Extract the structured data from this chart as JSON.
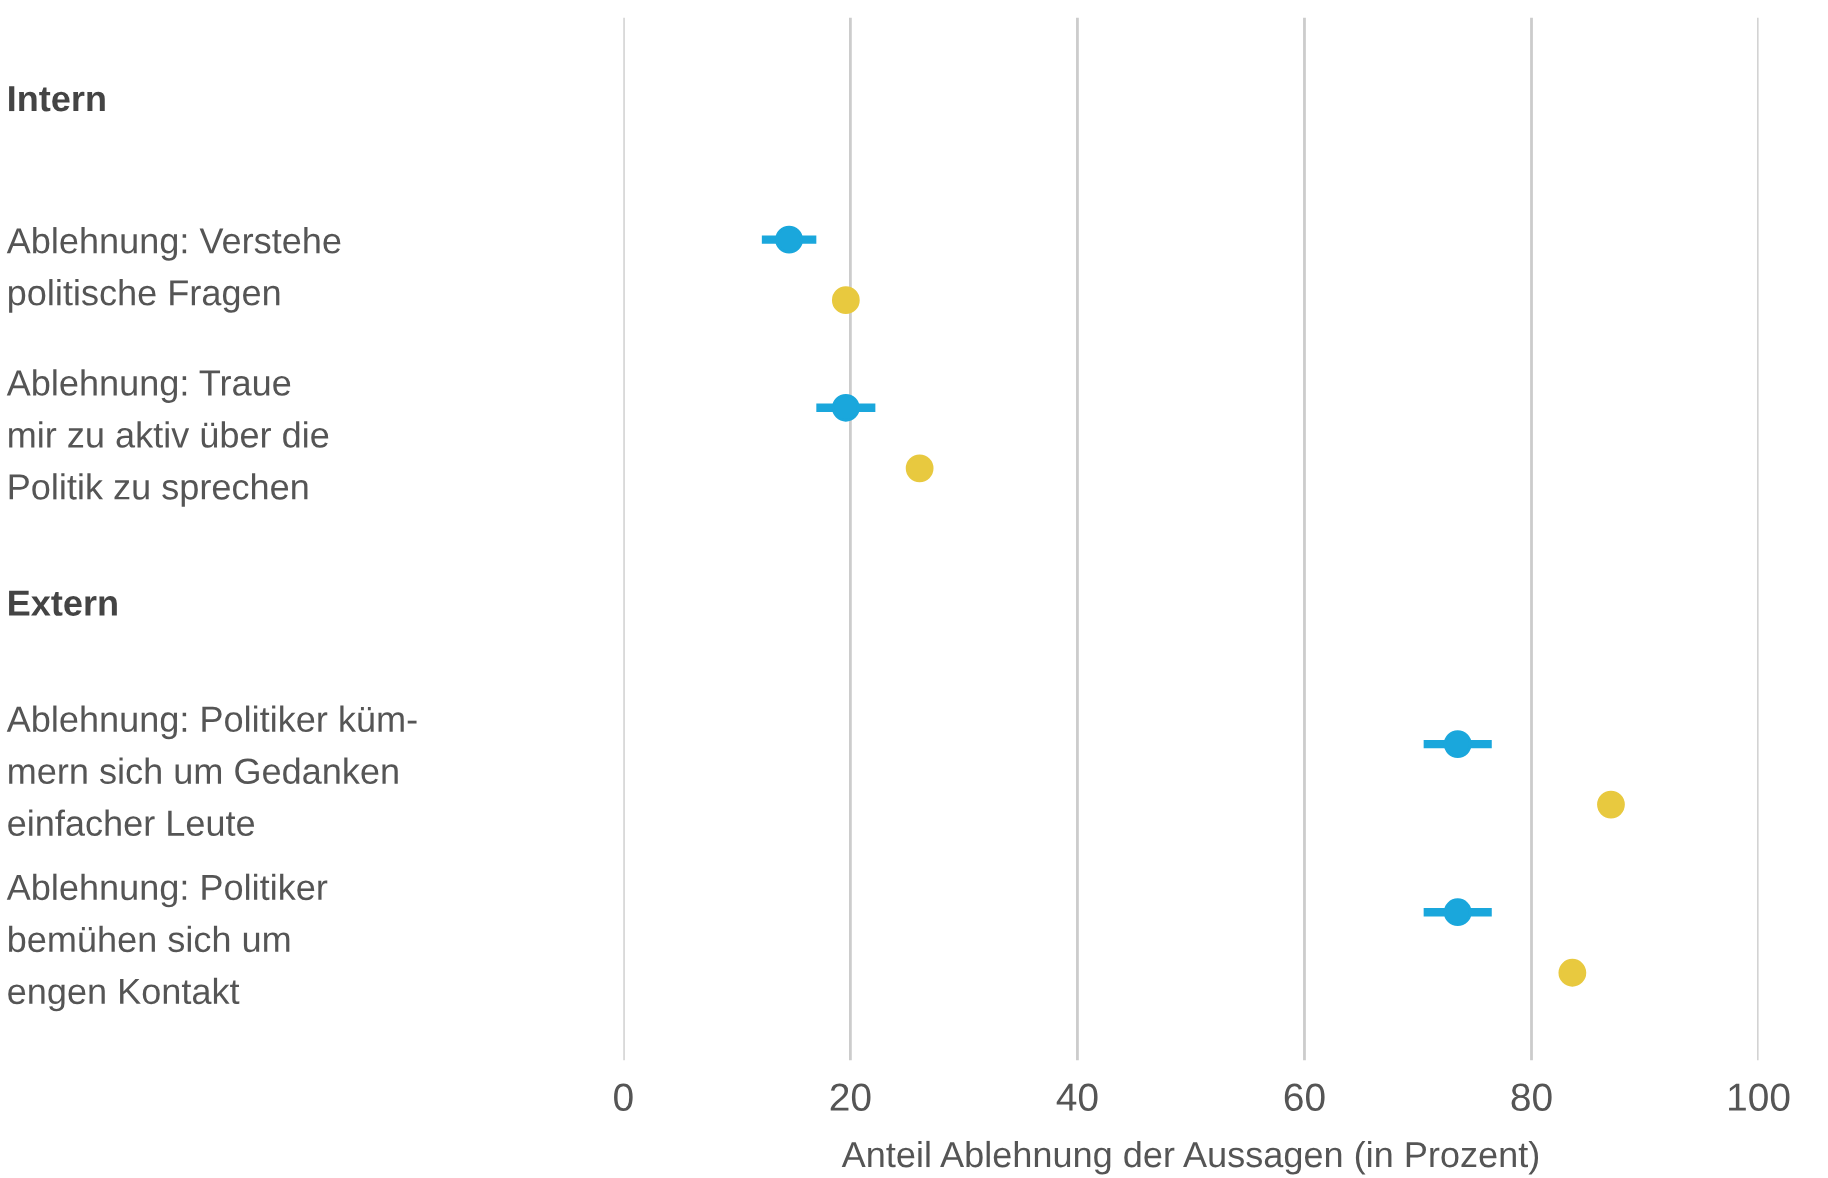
{
  "chart_data": {
    "type": "scatter",
    "orientation": "horizontal",
    "xlabel": "Anteil Ablehnung der Aussagen (in Prozent)",
    "categories": [
      "Intern",
      "Ablehnung: Verstehe\npolitische Fragen",
      "Ablehnung: Traue\nmir zu aktiv über die\nPolitik zu sprechen",
      "Extern",
      "Ablehnung: Politiker küm-\nmern sich um Gedanken\neinfacher Leute",
      "Ablehnung: Politiker\nbemühen sich um\nengen Kontakt"
    ],
    "series": [
      {
        "color": "#1aa7dc",
        "values": [
          null,
          14.6,
          19.6,
          null,
          73.5,
          73.5
        ],
        "errors": [
          null,
          2.4,
          2.6,
          null,
          3,
          3
        ]
      },
      {
        "color": "#e8c93f",
        "values": [
          null,
          19.6,
          26.1,
          null,
          87.0,
          83.6
        ],
        "errors": [
          null,
          1,
          1,
          null,
          1,
          1
        ]
      }
    ],
    "xlim": [
      0,
      100
    ],
    "xticks": [
      0,
      20,
      40,
      60,
      80,
      100
    ],
    "grid": "x",
    "marker": "circle",
    "legend": false
  }
}
